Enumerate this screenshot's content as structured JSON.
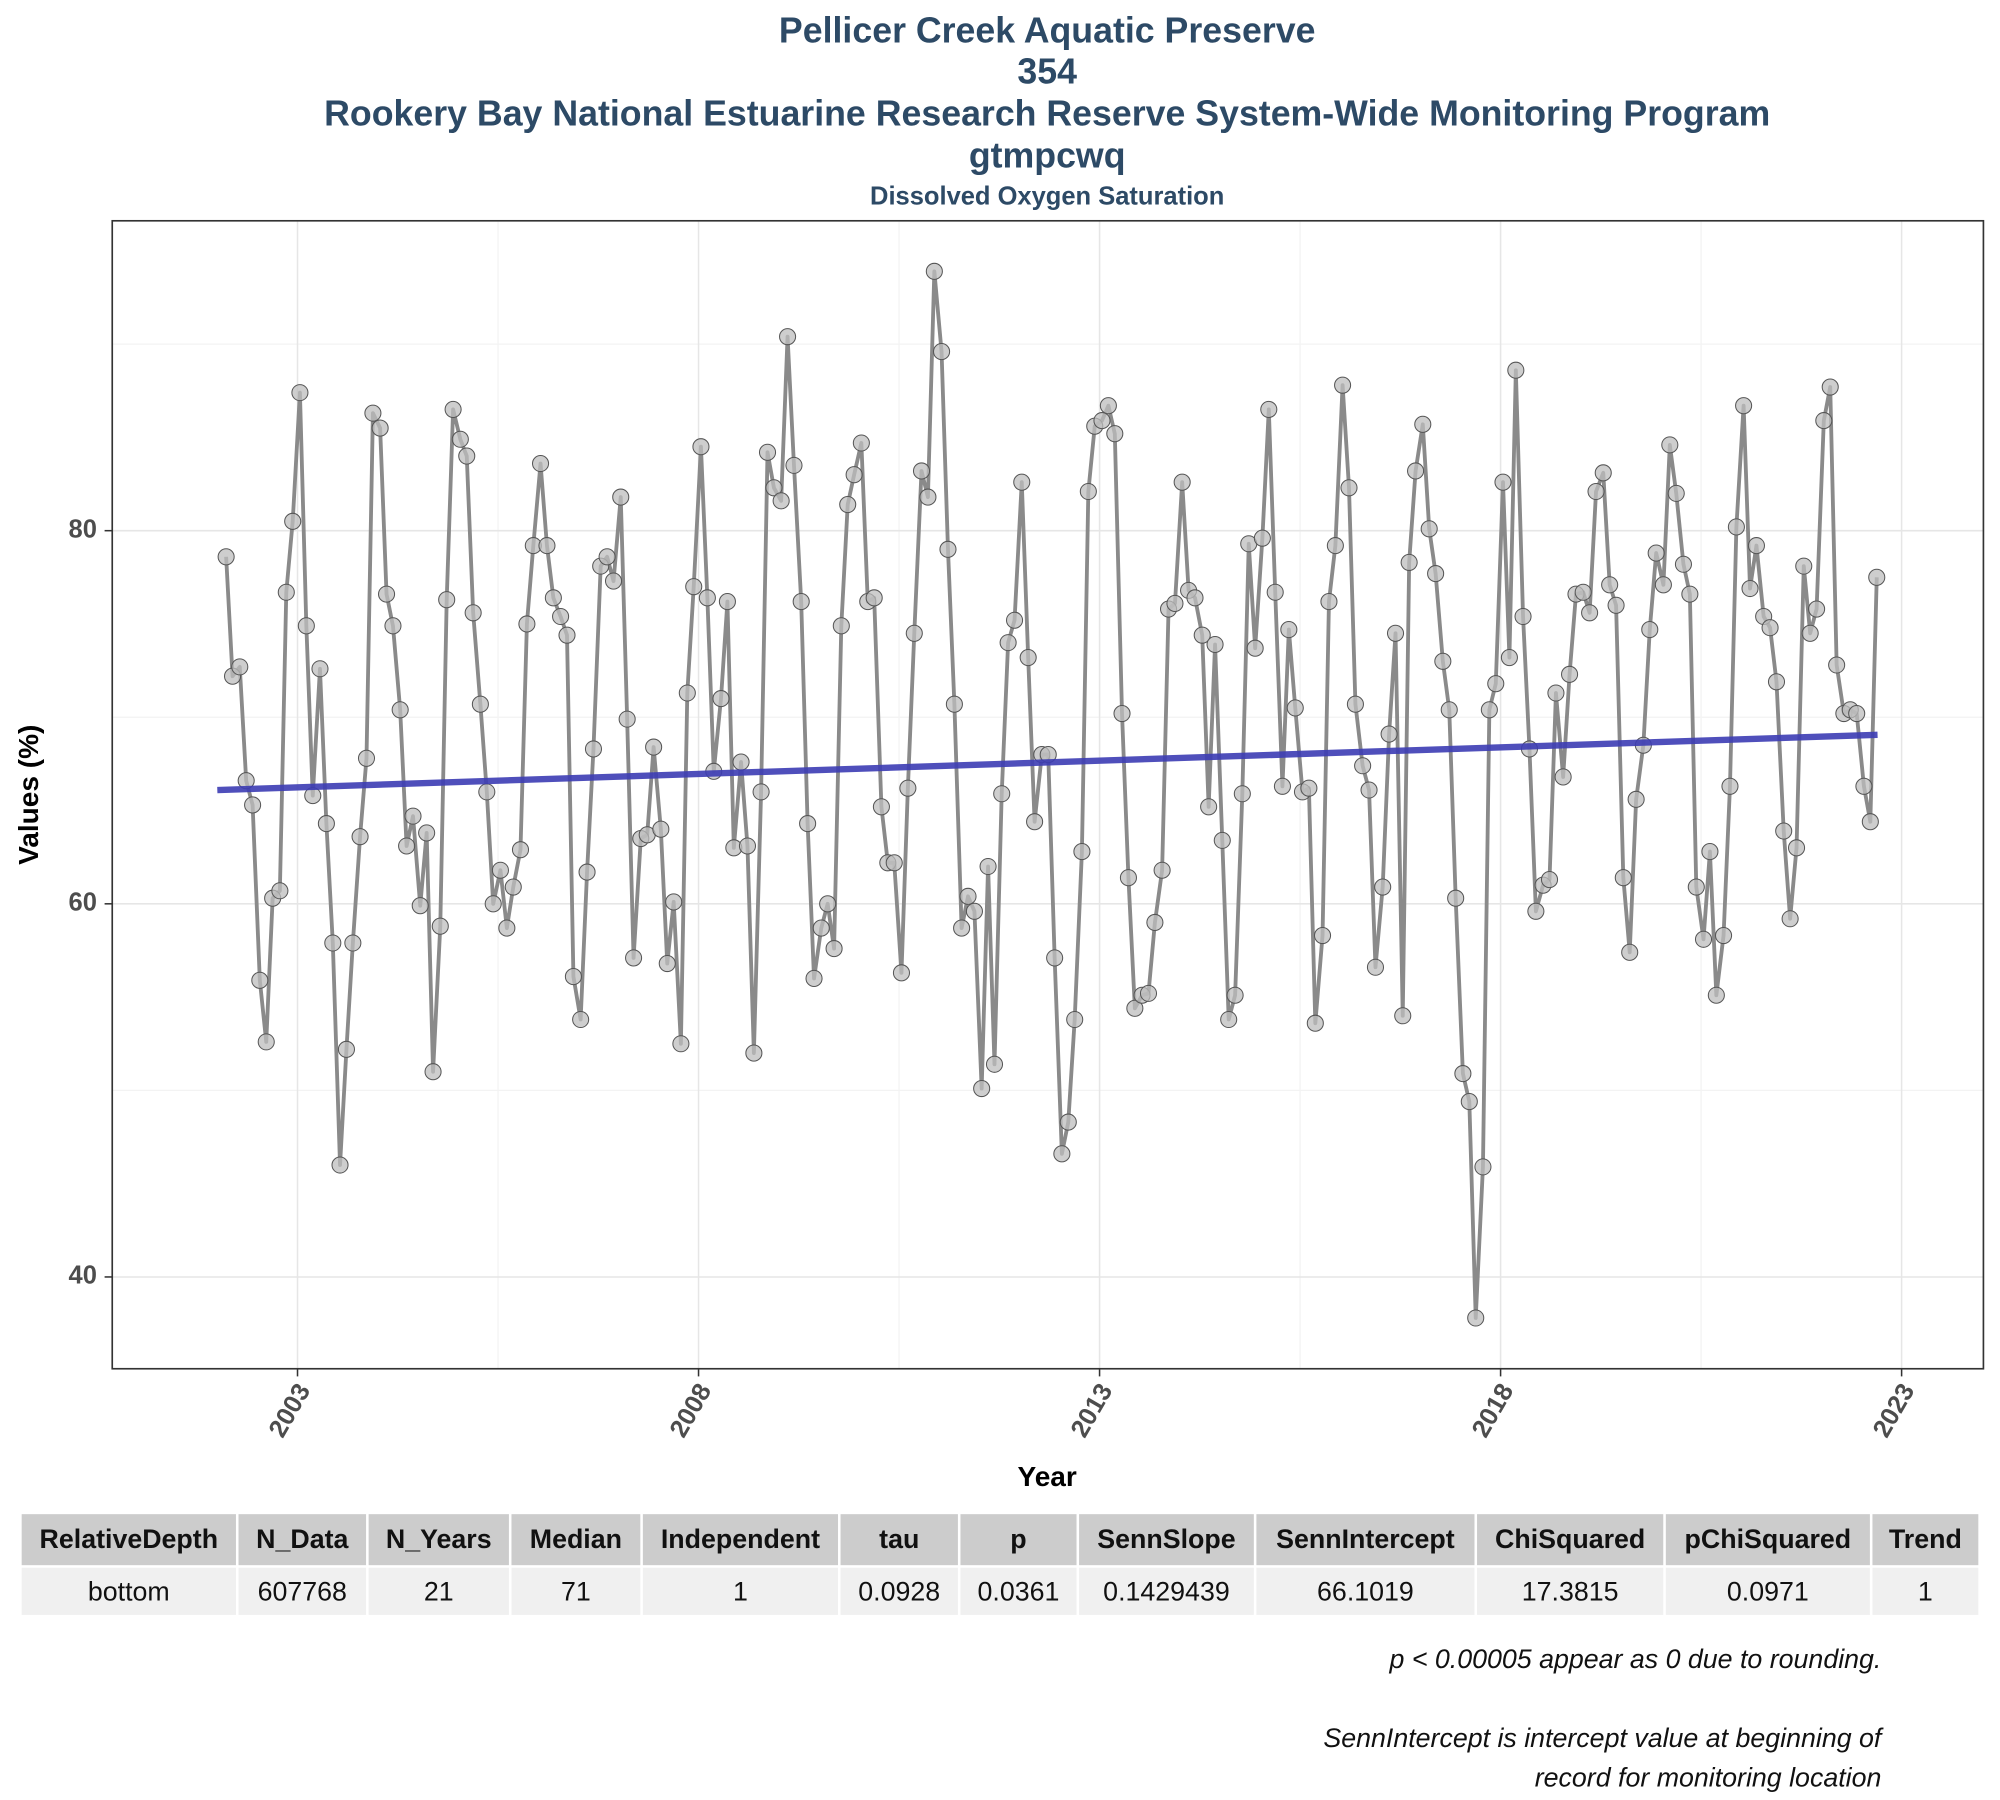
{
  "chart_data": {
    "type": "line",
    "title": [
      "Pellicer Creek Aquatic Preserve",
      "354",
      "Rookery Bay National Estuarine Research Reserve System-Wide Monitoring Program",
      "gtmpcwq"
    ],
    "subtitle": "Dissolved Oxygen Saturation",
    "x_label": "Year",
    "y_label": "Values (%)",
    "xlim": [
      2000.69,
      2024.02
    ],
    "ylim": [
      35.08,
      96.61
    ],
    "xticks": [
      2003,
      2008,
      2013,
      2018,
      2023
    ],
    "yticks": [
      40,
      60,
      80
    ],
    "x_minor_grid": [
      2005.5,
      2010.5,
      2015.5,
      2020.5
    ],
    "y_minor_grid": [
      50,
      70,
      90
    ],
    "grid": true,
    "x": [
      2002.11,
      2002.19,
      2002.28,
      2002.36,
      2002.44,
      2002.53,
      2002.61,
      2002.69,
      2002.78,
      2002.86,
      2002.94,
      2003.03,
      2003.11,
      2003.19,
      2003.28,
      2003.36,
      2003.44,
      2003.53,
      2003.61,
      2003.69,
      2003.78,
      2003.86,
      2003.94,
      2004.03,
      2004.11,
      2004.19,
      2004.28,
      2004.36,
      2004.44,
      2004.53,
      2004.61,
      2004.69,
      2004.78,
      2004.86,
      2004.94,
      2005.03,
      2005.11,
      2005.19,
      2005.28,
      2005.36,
      2005.44,
      2005.53,
      2005.61,
      2005.69,
      2005.78,
      2005.86,
      2005.94,
      2006.03,
      2006.11,
      2006.19,
      2006.28,
      2006.36,
      2006.44,
      2006.53,
      2006.61,
      2006.69,
      2006.78,
      2006.86,
      2006.94,
      2007.03,
      2007.11,
      2007.19,
      2007.28,
      2007.36,
      2007.44,
      2007.53,
      2007.61,
      2007.69,
      2007.78,
      2007.86,
      2007.94,
      2008.03,
      2008.11,
      2008.19,
      2008.28,
      2008.36,
      2008.44,
      2008.53,
      2008.61,
      2008.69,
      2008.78,
      2008.86,
      2008.94,
      2009.03,
      2009.11,
      2009.19,
      2009.28,
      2009.36,
      2009.44,
      2009.53,
      2009.61,
      2009.69,
      2009.78,
      2009.86,
      2009.94,
      2010.03,
      2010.11,
      2010.19,
      2010.28,
      2010.36,
      2010.44,
      2010.53,
      2010.61,
      2010.69,
      2010.78,
      2010.86,
      2010.94,
      2011.03,
      2011.11,
      2011.19,
      2011.28,
      2011.36,
      2011.44,
      2011.53,
      2011.61,
      2011.69,
      2011.78,
      2011.86,
      2011.94,
      2012.03,
      2012.11,
      2012.19,
      2012.28,
      2012.36,
      2012.44,
      2012.53,
      2012.61,
      2012.69,
      2012.78,
      2012.86,
      2012.94,
      2013.03,
      2013.11,
      2013.19,
      2013.28,
      2013.36,
      2013.44,
      2013.53,
      2013.61,
      2013.69,
      2013.78,
      2013.86,
      2013.94,
      2014.03,
      2014.11,
      2014.19,
      2014.28,
      2014.36,
      2014.44,
      2014.53,
      2014.61,
      2014.69,
      2014.78,
      2014.86,
      2014.94,
      2015.03,
      2015.11,
      2015.19,
      2015.28,
      2015.36,
      2015.44,
      2015.53,
      2015.61,
      2015.69,
      2015.78,
      2015.86,
      2015.94,
      2016.03,
      2016.11,
      2016.19,
      2016.28,
      2016.36,
      2016.44,
      2016.53,
      2016.61,
      2016.69,
      2016.78,
      2016.86,
      2016.94,
      2017.03,
      2017.11,
      2017.19,
      2017.28,
      2017.36,
      2017.44,
      2017.53,
      2017.61,
      2017.69,
      2017.78,
      2017.86,
      2017.94,
      2018.03,
      2018.11,
      2018.19,
      2018.28,
      2018.36,
      2018.44,
      2018.53,
      2018.61,
      2018.69,
      2018.78,
      2018.86,
      2018.94,
      2019.03,
      2019.11,
      2019.19,
      2019.28,
      2019.36,
      2019.44,
      2019.53,
      2019.61,
      2019.69,
      2019.78,
      2019.86,
      2019.94,
      2020.03,
      2020.11,
      2020.19,
      2020.28,
      2020.36,
      2020.44,
      2020.53,
      2020.61,
      2020.69,
      2020.78,
      2020.86,
      2020.94,
      2021.03,
      2021.11,
      2021.19,
      2021.28,
      2021.36,
      2021.44,
      2021.53,
      2021.61,
      2021.69,
      2021.78,
      2021.86,
      2021.94,
      2022.03,
      2022.11,
      2022.19,
      2022.28,
      2022.36,
      2022.44,
      2022.53,
      2022.61,
      2022.69
    ],
    "series": [
      {
        "color": "#8a8a8a",
        "marker_color": "#bdbdbd",
        "values": [
          78.6,
          72.2,
          72.7,
          66.6,
          65.3,
          55.9,
          52.6,
          60.3,
          60.7,
          76.7,
          80.5,
          87.4,
          74.9,
          65.8,
          72.6,
          64.3,
          57.9,
          46.0,
          52.2,
          57.9,
          63.6,
          67.8,
          86.3,
          85.5,
          76.6,
          74.9,
          70.4,
          63.1,
          64.7,
          59.9,
          63.8,
          51.0,
          58.8,
          76.3,
          86.5,
          84.9,
          84.0,
          75.6,
          70.7,
          66.0,
          60.0,
          61.8,
          58.7,
          60.9,
          62.9,
          75.0,
          79.2,
          83.6,
          79.2,
          76.4,
          75.4,
          74.4,
          56.1,
          53.8,
          61.7,
          68.3,
          78.1,
          78.6,
          77.3,
          81.8,
          69.9,
          57.1,
          63.5,
          63.7,
          68.4,
          64.0,
          56.8,
          60.1,
          52.5,
          71.3,
          77.0,
          84.5,
          76.4,
          67.1,
          71.0,
          76.2,
          63.0,
          67.6,
          63.1,
          52.0,
          66.0,
          84.2,
          82.3,
          81.6,
          90.4,
          83.5,
          76.2,
          64.3,
          56.0,
          58.7,
          60.0,
          57.6,
          74.9,
          81.4,
          83.0,
          84.7,
          76.2,
          76.4,
          65.2,
          62.2,
          62.2,
          56.3,
          66.2,
          74.5,
          83.2,
          81.8,
          93.9,
          89.6,
          79.0,
          70.7,
          58.7,
          60.4,
          59.6,
          50.1,
          62.0,
          51.4,
          65.9,
          74.0,
          75.2,
          82.6,
          73.2,
          64.4,
          68.0,
          68.0,
          57.1,
          46.6,
          48.3,
          53.8,
          62.8,
          82.1,
          85.6,
          85.9,
          86.7,
          85.2,
          70.2,
          61.4,
          54.4,
          55.1,
          55.2,
          59.0,
          61.8,
          75.8,
          76.1,
          82.6,
          76.8,
          76.4,
          74.4,
          65.2,
          73.9,
          63.4,
          53.8,
          55.1,
          65.9,
          79.3,
          73.7,
          79.6,
          86.5,
          76.7,
          66.3,
          74.7,
          70.5,
          66.0,
          66.2,
          53.6,
          58.3,
          76.2,
          79.2,
          87.8,
          82.3,
          70.7,
          67.4,
          66.1,
          56.6,
          60.9,
          69.1,
          74.5,
          54.0,
          78.3,
          83.2,
          85.7,
          80.1,
          77.7,
          73.0,
          70.4,
          60.3,
          50.9,
          49.4,
          37.8,
          45.9,
          70.4,
          71.8,
          82.6,
          73.2,
          88.6,
          75.4,
          68.3,
          59.6,
          61.0,
          61.3,
          71.3,
          66.8,
          72.3,
          76.6,
          76.7,
          75.6,
          82.1,
          83.1,
          77.1,
          76.0,
          61.4,
          57.4,
          65.6,
          68.5,
          74.7,
          78.8,
          77.1,
          84.6,
          82.0,
          78.2,
          76.6,
          60.9,
          58.1,
          62.8,
          55.1,
          58.3,
          66.3,
          80.2,
          86.7,
          76.9,
          79.2,
          75.4,
          74.8,
          71.9,
          63.9,
          59.2,
          63.0,
          78.1,
          74.5,
          75.8,
          85.9,
          87.7,
          72.8,
          70.2,
          70.4,
          70.2,
          66.3,
          64.4,
          77.5
        ]
      }
    ],
    "trend": {
      "x": [
        2002.0,
        2022.7
      ],
      "values": [
        66.1,
        69.06
      ],
      "color": "#3c3cb4"
    }
  },
  "table": {
    "columns": [
      "RelativeDepth",
      "N_Data",
      "N_Years",
      "Median",
      "Independent",
      "tau",
      "p",
      "SennSlope",
      "SennIntercept",
      "ChiSquared",
      "pChiSquared",
      "Trend"
    ],
    "rows": [
      [
        "bottom",
        "607768",
        "21",
        "71",
        "1",
        "0.0928",
        "0.0361",
        "0.1429439",
        "66.1019",
        "17.3815",
        "0.0971",
        "1"
      ]
    ]
  },
  "notes": [
    "p < 0.00005 appear as 0 due to rounding.",
    "SennIntercept is intercept value at beginning of",
    "record for monitoring location"
  ]
}
